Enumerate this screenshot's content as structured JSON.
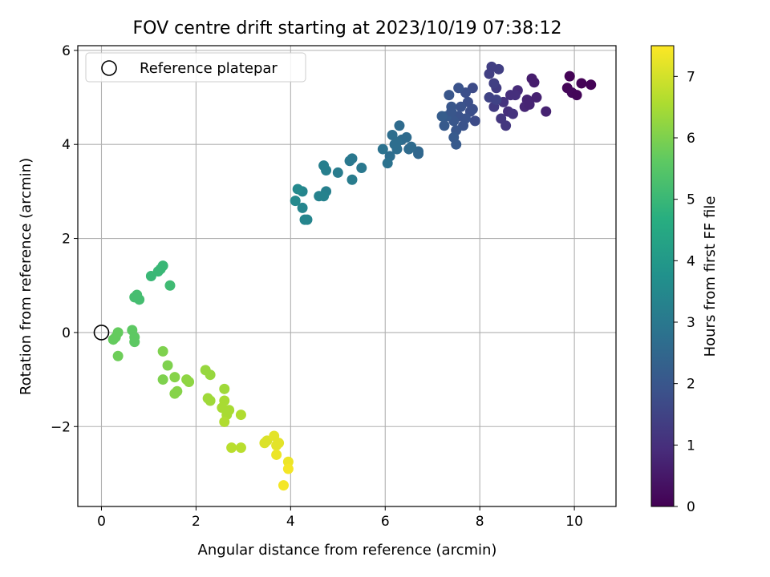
{
  "chart_data": {
    "type": "scatter",
    "title": "FOV centre drift starting at 2023/10/19 07:38:12",
    "xlabel": "Angular distance from reference (arcmin)",
    "ylabel": "Rotation from reference (arcmin)",
    "xlim": [
      -0.5,
      10.88
    ],
    "ylim": [
      -3.7,
      6.1
    ],
    "xticks": [
      0,
      2,
      4,
      6,
      8,
      10
    ],
    "yticks": [
      -2,
      0,
      2,
      4,
      6
    ],
    "ytick_labels": [
      "−2",
      "0",
      "2",
      "4",
      "6"
    ],
    "grid": true,
    "legend": {
      "placement": "top-left",
      "entries": [
        "Reference platepar"
      ]
    },
    "reference_point": {
      "x": 0,
      "y": 0,
      "label": "Reference platepar"
    },
    "colorbar": {
      "label": "Hours from first FF file",
      "colormap": "viridis",
      "range": [
        0,
        7.5
      ],
      "ticks": [
        0,
        1,
        2,
        3,
        4,
        5,
        6,
        7
      ]
    },
    "points": [
      [
        9.9,
        5.45,
        0.05
      ],
      [
        10.15,
        5.3,
        0.05
      ],
      [
        10.35,
        5.27,
        0.05
      ],
      [
        9.85,
        5.2,
        0.1
      ],
      [
        9.95,
        5.1,
        0.15
      ],
      [
        10.05,
        5.05,
        0.1
      ],
      [
        9.1,
        5.4,
        0.6
      ],
      [
        9.15,
        5.32,
        0.6
      ],
      [
        9.4,
        4.7,
        0.7
      ],
      [
        9.0,
        4.95,
        0.75
      ],
      [
        9.2,
        5.0,
        0.7
      ],
      [
        8.95,
        4.8,
        0.8
      ],
      [
        9.05,
        4.85,
        0.75
      ],
      [
        8.8,
        5.15,
        0.9
      ],
      [
        8.6,
        4.7,
        1.0
      ],
      [
        8.65,
        5.05,
        1.0
      ],
      [
        8.5,
        4.9,
        1.1
      ],
      [
        8.45,
        4.55,
        1.2
      ],
      [
        8.55,
        4.4,
        1.2
      ],
      [
        8.7,
        4.65,
        1.1
      ],
      [
        8.75,
        5.05,
        1.0
      ],
      [
        8.3,
        4.8,
        1.3
      ],
      [
        8.35,
        5.2,
        1.3
      ],
      [
        8.4,
        5.6,
        1.4
      ],
      [
        8.25,
        5.65,
        1.4
      ],
      [
        8.2,
        5.5,
        1.4
      ],
      [
        8.2,
        5.0,
        1.5
      ],
      [
        8.3,
        5.3,
        1.4
      ],
      [
        8.35,
        4.95,
        1.5
      ],
      [
        7.85,
        5.2,
        1.7
      ],
      [
        7.9,
        4.5,
        1.7
      ],
      [
        7.7,
        5.1,
        1.8
      ],
      [
        7.75,
        4.9,
        1.8
      ],
      [
        7.8,
        4.7,
        1.8
      ],
      [
        7.6,
        4.8,
        1.9
      ],
      [
        7.55,
        4.6,
        1.9
      ],
      [
        7.65,
        4.4,
        1.9
      ],
      [
        7.4,
        4.8,
        2.0
      ],
      [
        7.45,
        4.5,
        2.0
      ],
      [
        7.5,
        4.3,
        2.0
      ],
      [
        7.3,
        4.6,
        2.1
      ],
      [
        7.25,
        4.4,
        2.1
      ],
      [
        7.35,
        5.05,
        2.0
      ],
      [
        7.55,
        5.2,
        1.9
      ],
      [
        7.45,
        4.15,
        2.1
      ],
      [
        7.5,
        4.0,
        2.1
      ],
      [
        7.7,
        4.55,
        1.9
      ],
      [
        7.85,
        4.75,
        1.8
      ],
      [
        7.4,
        4.7,
        2.0
      ],
      [
        7.2,
        4.6,
        2.2
      ],
      [
        6.7,
        3.85,
        2.5
      ],
      [
        6.7,
        3.8,
        2.5
      ],
      [
        6.5,
        3.9,
        2.6
      ],
      [
        6.45,
        4.15,
        2.6
      ],
      [
        6.35,
        4.1,
        2.6
      ],
      [
        6.3,
        4.4,
        2.6
      ],
      [
        6.25,
        3.9,
        2.7
      ],
      [
        6.2,
        4.0,
        2.7
      ],
      [
        6.15,
        4.2,
        2.7
      ],
      [
        6.1,
        3.75,
        2.7
      ],
      [
        6.05,
        3.6,
        2.8
      ],
      [
        5.95,
        3.9,
        2.8
      ],
      [
        6.55,
        3.95,
        2.6
      ],
      [
        6.25,
        4.05,
        2.7
      ],
      [
        5.5,
        3.5,
        3.0
      ],
      [
        5.3,
        3.7,
        3.0
      ],
      [
        5.25,
        3.65,
        3.0
      ],
      [
        5.3,
        3.25,
        3.1
      ],
      [
        5.0,
        3.4,
        3.1
      ],
      [
        4.75,
        3.45,
        3.2
      ],
      [
        4.7,
        3.55,
        3.2
      ],
      [
        4.75,
        3.0,
        3.2
      ],
      [
        4.7,
        2.9,
        3.3
      ],
      [
        4.6,
        2.9,
        3.3
      ],
      [
        4.35,
        2.4,
        3.4
      ],
      [
        4.3,
        2.4,
        3.4
      ],
      [
        4.25,
        2.65,
        3.4
      ],
      [
        4.25,
        3.0,
        3.4
      ],
      [
        4.15,
        3.05,
        3.5
      ],
      [
        4.1,
        2.8,
        3.5
      ],
      [
        1.45,
        1.0,
        5.1
      ],
      [
        1.3,
        1.42,
        5.0
      ],
      [
        1.25,
        1.35,
        5.0
      ],
      [
        1.2,
        1.3,
        5.0
      ],
      [
        1.05,
        1.2,
        5.0
      ],
      [
        0.8,
        0.7,
        5.2
      ],
      [
        0.75,
        0.8,
        5.2
      ],
      [
        0.7,
        0.75,
        5.2
      ],
      [
        0.65,
        0.05,
        5.6
      ],
      [
        0.7,
        -0.1,
        5.6
      ],
      [
        0.7,
        -0.2,
        5.6
      ],
      [
        0.35,
        0.0,
        5.7
      ],
      [
        0.3,
        -0.1,
        5.7
      ],
      [
        0.25,
        -0.15,
        5.7
      ],
      [
        0.35,
        -0.5,
        5.8
      ],
      [
        1.3,
        -0.4,
        6.0
      ],
      [
        1.4,
        -0.7,
        6.0
      ],
      [
        1.3,
        -1.0,
        6.0
      ],
      [
        1.55,
        -0.95,
        6.1
      ],
      [
        1.6,
        -1.25,
        6.1
      ],
      [
        1.55,
        -1.3,
        6.1
      ],
      [
        1.8,
        -1.0,
        6.2
      ],
      [
        1.85,
        -1.05,
        6.2
      ],
      [
        2.2,
        -0.8,
        6.3
      ],
      [
        2.3,
        -0.9,
        6.3
      ],
      [
        2.25,
        -1.4,
        6.4
      ],
      [
        2.3,
        -1.45,
        6.4
      ],
      [
        2.6,
        -1.2,
        6.4
      ],
      [
        2.6,
        -1.45,
        6.5
      ],
      [
        2.55,
        -1.6,
        6.5
      ],
      [
        2.65,
        -1.75,
        6.5
      ],
      [
        2.7,
        -1.65,
        6.5
      ],
      [
        2.6,
        -1.9,
        6.6
      ],
      [
        2.95,
        -1.75,
        6.6
      ],
      [
        2.75,
        -2.45,
        6.7
      ],
      [
        2.95,
        -2.45,
        6.7
      ],
      [
        3.45,
        -2.35,
        7.1
      ],
      [
        3.5,
        -2.3,
        7.1
      ],
      [
        3.65,
        -2.2,
        7.2
      ],
      [
        3.7,
        -2.4,
        7.2
      ],
      [
        3.75,
        -2.35,
        7.2
      ],
      [
        3.7,
        -2.6,
        7.3
      ],
      [
        3.95,
        -2.75,
        7.3
      ],
      [
        3.95,
        -2.9,
        7.4
      ],
      [
        3.85,
        -3.25,
        7.4
      ]
    ]
  }
}
